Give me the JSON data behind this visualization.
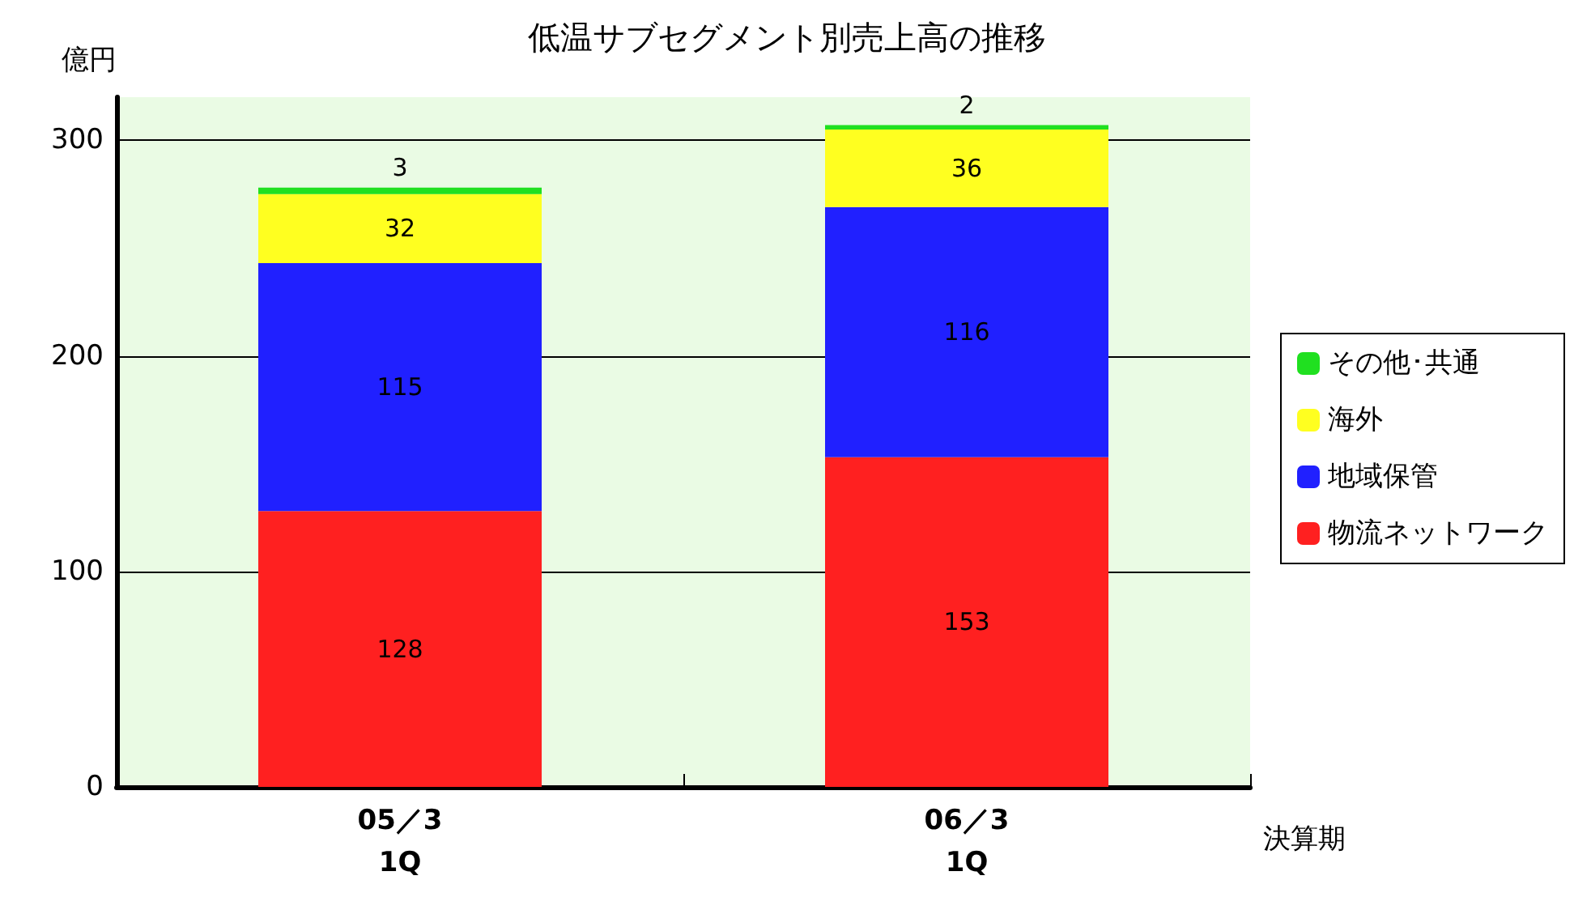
{
  "chart_data": {
    "type": "bar",
    "title": "低温サブセグメント別売上高の推移",
    "xlabel": "決算期",
    "ylabel": "億円",
    "categories": [
      "05／3\n1Q",
      "06／3\n1Q"
    ],
    "stacked": true,
    "data_labels": true,
    "grid": "y",
    "legend": "right",
    "ylim": [
      0,
      320
    ],
    "yticks": [
      0,
      100,
      200,
      300
    ],
    "series": [
      {
        "name": "物流ネットワーク",
        "color": "#ff2020",
        "values": [
          128,
          153
        ]
      },
      {
        "name": "地域保管",
        "color": "#2020ff",
        "values": [
          115,
          116
        ]
      },
      {
        "name": "海外",
        "color": "#ffff20",
        "values": [
          32,
          36
        ]
      },
      {
        "name": "その他･共通",
        "color": "#20e020",
        "values": [
          3,
          2
        ]
      }
    ]
  }
}
